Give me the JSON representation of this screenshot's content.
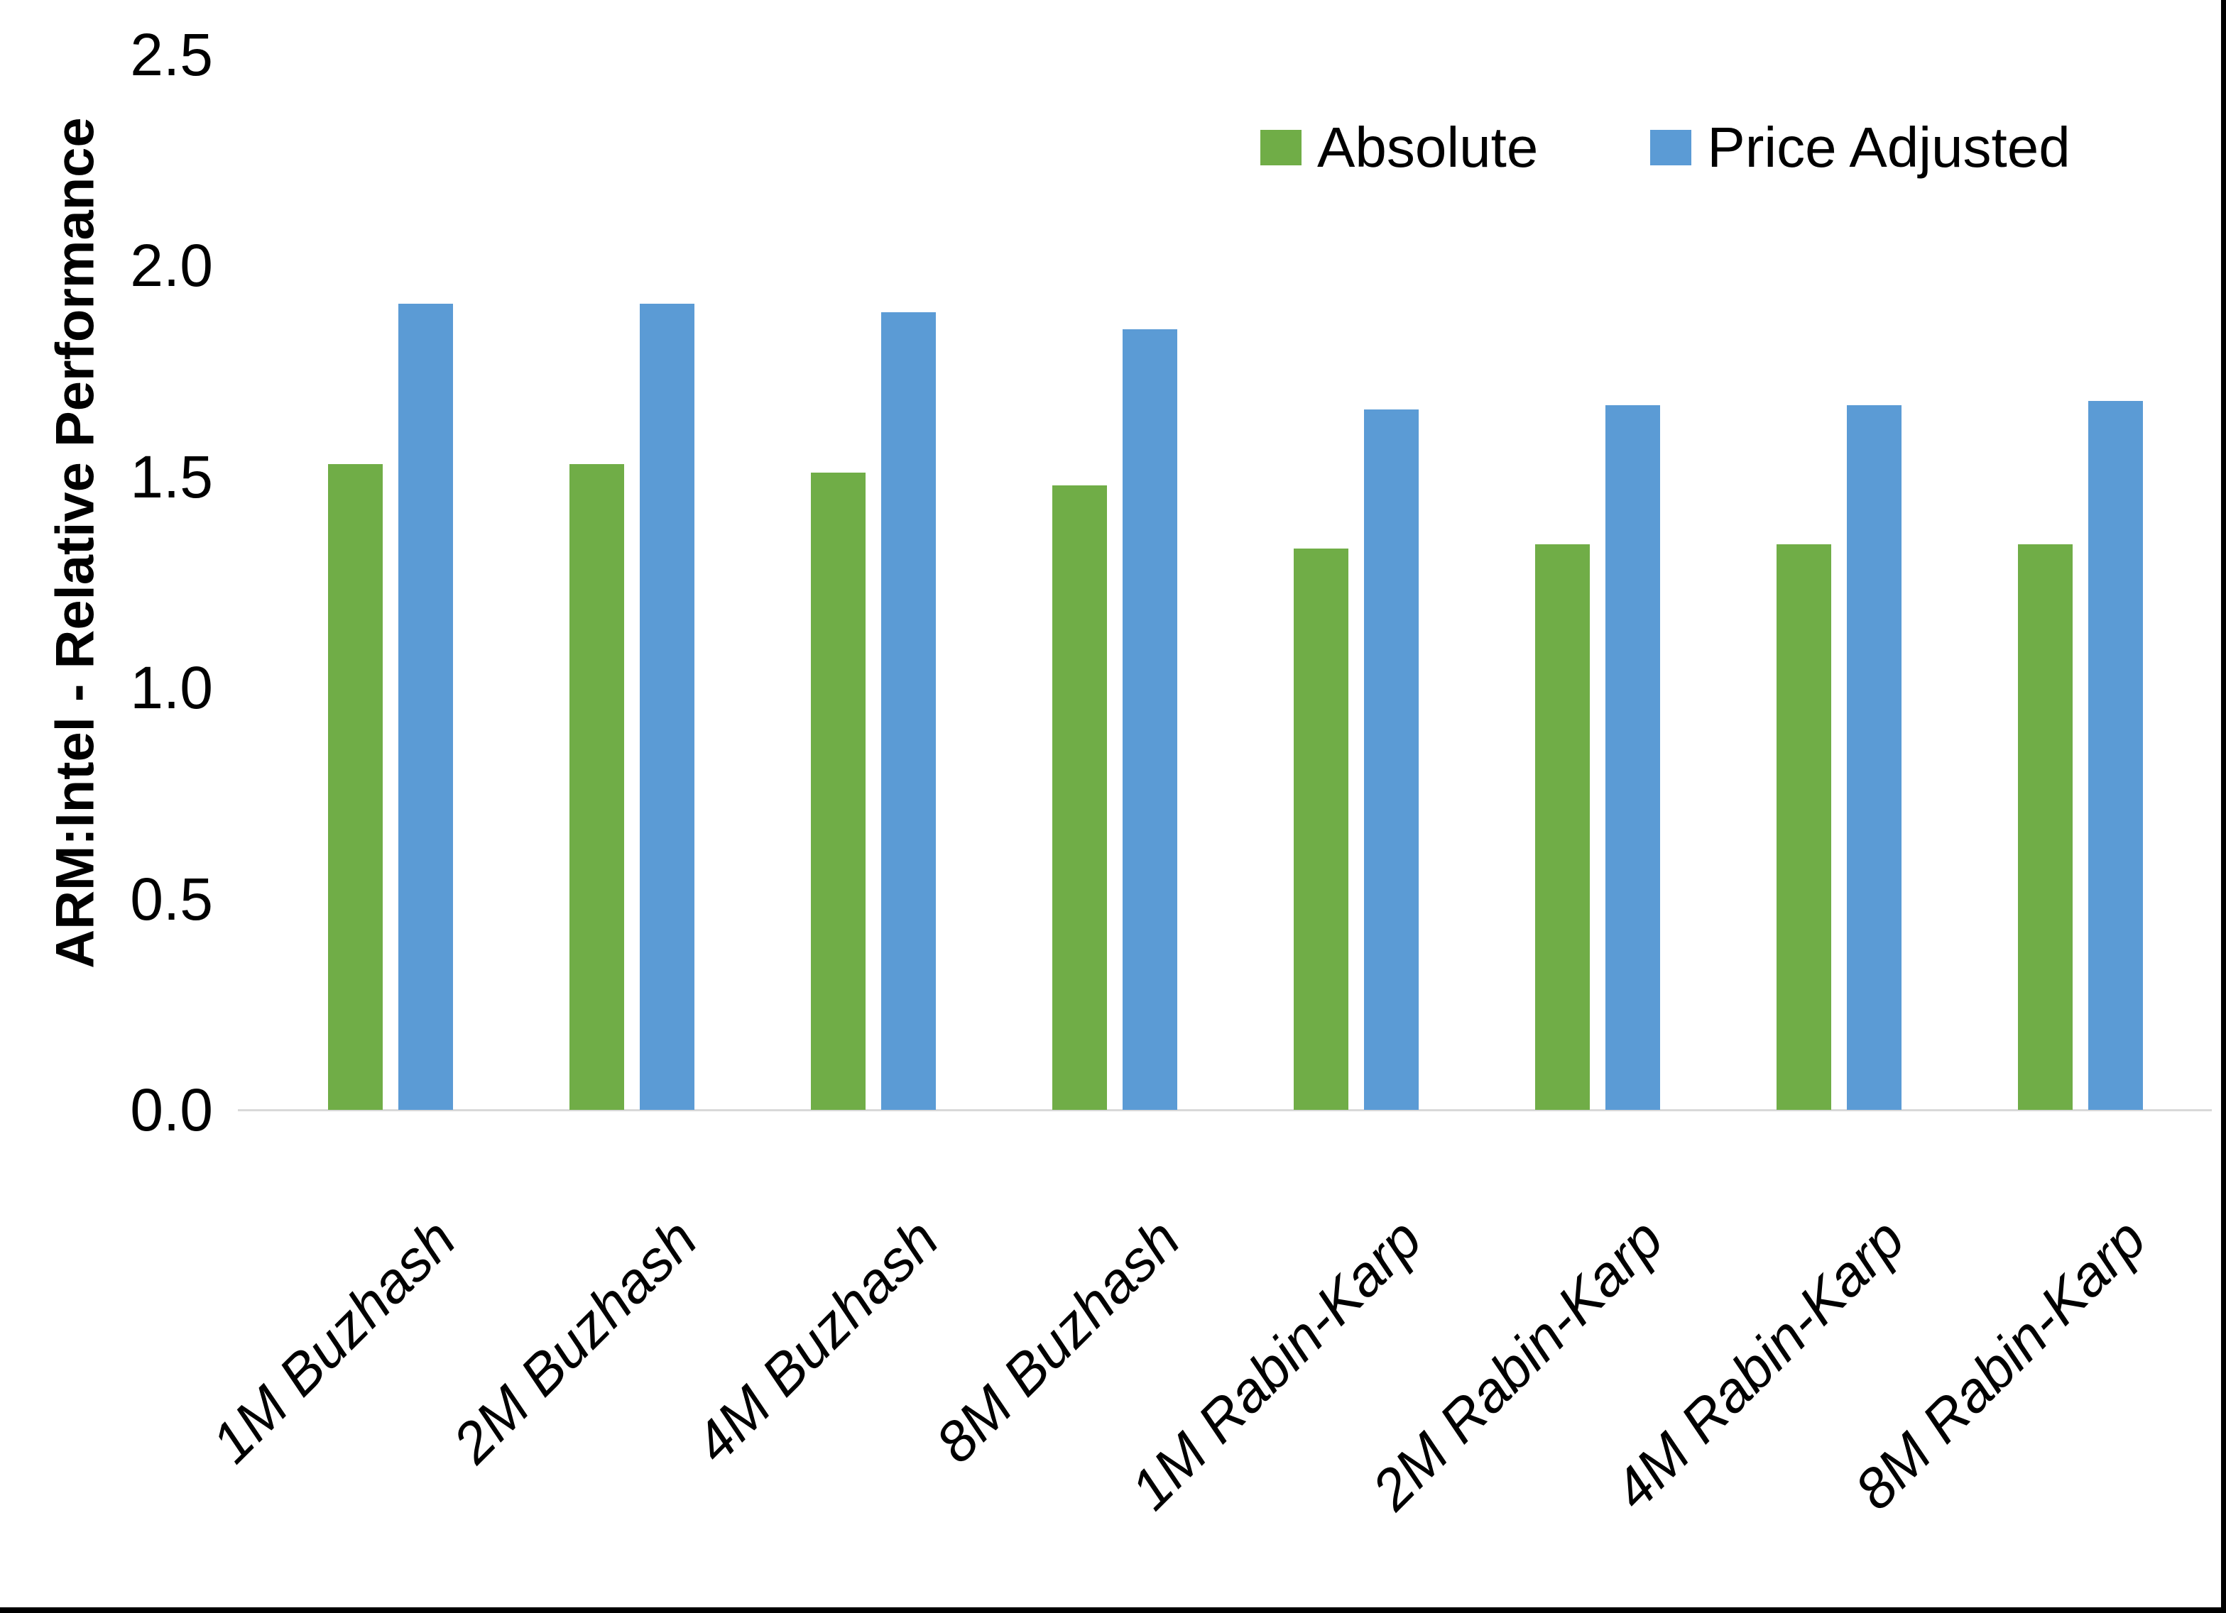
{
  "chart_data": {
    "type": "bar",
    "title": "",
    "categories": [
      "1M Buzhash",
      "2M Buzhash",
      "4M Buzhash",
      "8M Buzhash",
      "1M Rabin-Karp",
      "2M Rabin-Karp",
      "4M Rabin-Karp",
      "8M Rabin-Karp"
    ],
    "series": [
      {
        "name": "Absolute",
        "color": "#70AD47",
        "values": [
          1.53,
          1.53,
          1.51,
          1.48,
          1.33,
          1.34,
          1.34,
          1.34
        ]
      },
      {
        "name": "Price Adjusted",
        "color": "#5B9BD5",
        "values": [
          1.91,
          1.91,
          1.89,
          1.85,
          1.66,
          1.67,
          1.67,
          1.68
        ]
      }
    ],
    "xlabel": "",
    "ylabel": "ARM:Intel - Relative Performance",
    "ylim": [
      0,
      2.5
    ],
    "yticks": [
      "0.0",
      "0.5",
      "1.0",
      "1.5",
      "2.0",
      "2.5"
    ],
    "grid": false,
    "legend_position": "top-right",
    "colors": {
      "axis_line": "#D9D9D9",
      "text": "#000000",
      "background": "#FFFFFF",
      "frame": "#000000"
    }
  }
}
